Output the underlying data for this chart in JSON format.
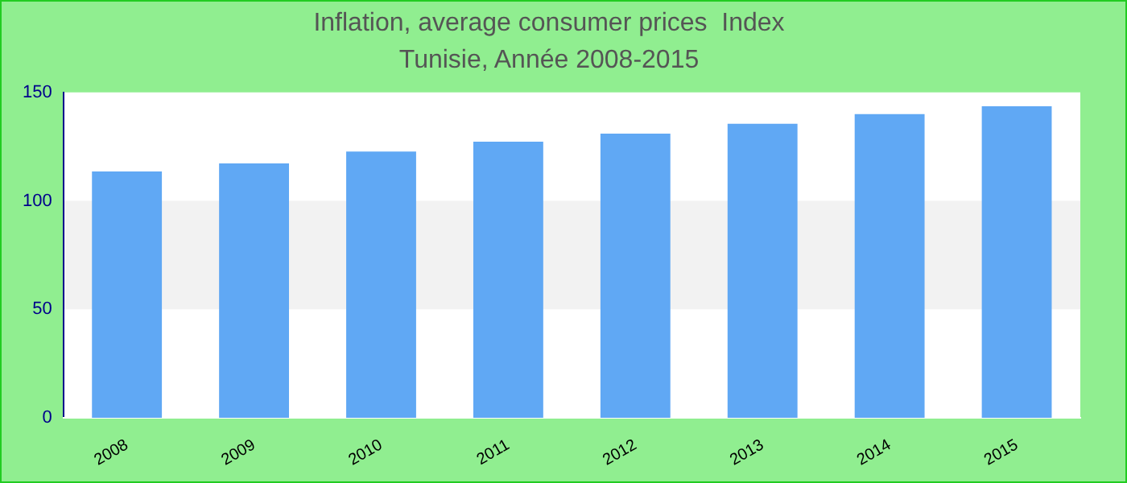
{
  "chart_data": {
    "type": "bar",
    "title": "Inflation, average consumer prices  Index",
    "subtitle": "Tunisie, Année 2008-2015",
    "categories": [
      "2008",
      "2009",
      "2010",
      "2011",
      "2012",
      "2013",
      "2014",
      "2015"
    ],
    "values": [
      113.6,
      117.3,
      122.7,
      127.3,
      131,
      135.5,
      140,
      143.6
    ],
    "color": "#60a8f4",
    "ylim": [
      0,
      150
    ],
    "yticks": [
      0,
      50,
      100,
      150
    ],
    "grid": false,
    "legend": false,
    "bands": [
      {
        "axis": "y",
        "from": 50,
        "to": 100,
        "color": "#f2f2f2"
      }
    ]
  }
}
